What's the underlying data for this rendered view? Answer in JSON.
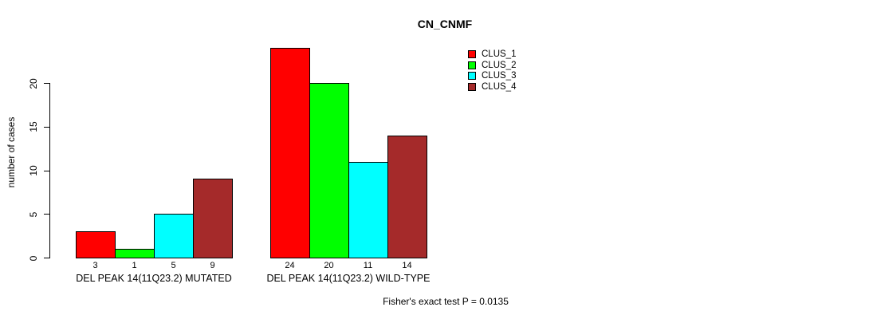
{
  "chart_data": {
    "type": "bar",
    "title": "CN_CNMF",
    "ylabel": "number of cases",
    "xlabel": "",
    "ylim": [
      0,
      24.6
    ],
    "yticks": [
      0,
      5,
      10,
      15,
      20
    ],
    "grid": false,
    "legend_position": "top-right",
    "categories": [
      "DEL PEAK 14(11Q23.2) MUTATED",
      "DEL PEAK 14(11Q23.2) WILD-TYPE"
    ],
    "series": [
      {
        "name": "CLUS_1",
        "color": "#ff0000",
        "values": [
          3,
          24
        ]
      },
      {
        "name": "CLUS_2",
        "color": "#00ff00",
        "values": [
          1,
          20
        ]
      },
      {
        "name": "CLUS_3",
        "color": "#00ffff",
        "values": [
          5,
          11
        ]
      },
      {
        "name": "CLUS_4",
        "color": "#a52a2a",
        "values": [
          9,
          14
        ]
      }
    ],
    "bar_value_labels": [
      [
        3,
        1,
        5,
        9
      ],
      [
        24,
        20,
        11,
        14
      ]
    ],
    "annotation": "Fisher's exact test P = 0.0135",
    "text_color": "#000000",
    "axis_color": "#000000",
    "background_color": "#ffffff"
  }
}
